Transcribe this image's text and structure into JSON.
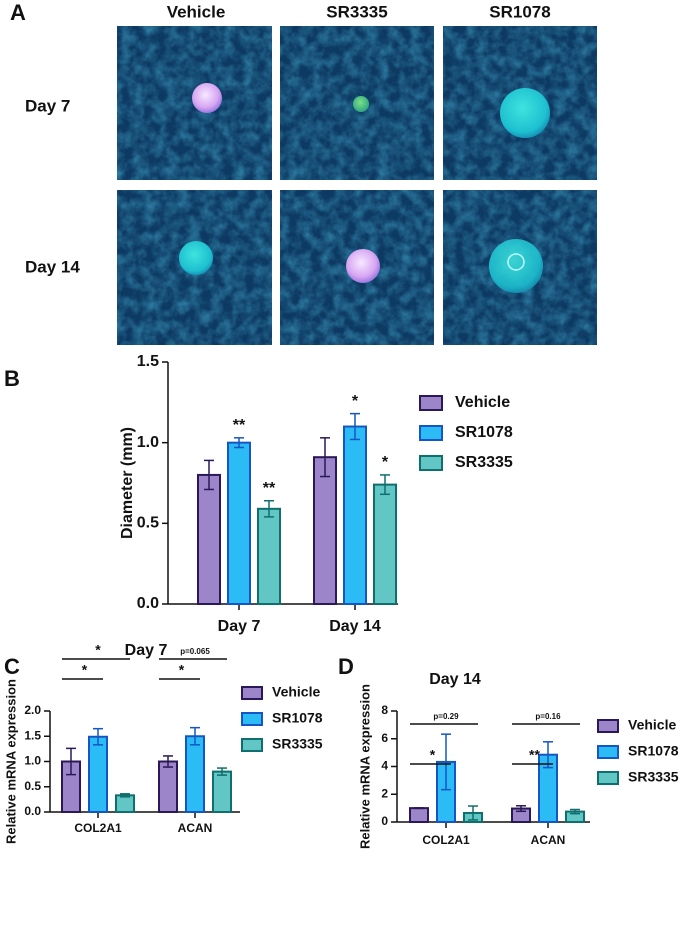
{
  "panel_a": {
    "label": "A",
    "columns": [
      "Vehicle",
      "SR3335",
      "SR1078"
    ],
    "rows": [
      "Day 7",
      "Day 14"
    ]
  },
  "chart_data": [
    {
      "type": "bar",
      "panel_label": "B",
      "ylabel": "Diameter (mm)",
      "categories": [
        "Day 7",
        "Day 14"
      ],
      "ylim": [
        0,
        1.5
      ],
      "yticks": [
        {
          "value": 0,
          "label": "0.0"
        },
        {
          "value": 0.5,
          "label": "0.5"
        },
        {
          "value": 1,
          "label": "1.0"
        },
        {
          "value": 1.5,
          "label": "1.5"
        }
      ],
      "series": [
        {
          "name": "Vehicle",
          "color": "#9d85c9",
          "edgecolor": "#2b1858",
          "values": [
            0.8,
            0.91
          ],
          "errors": [
            0.09,
            0.12
          ]
        },
        {
          "name": "SR1078",
          "color": "#2bbcf5",
          "edgecolor": "#1556c4",
          "values": [
            1.0,
            1.1
          ],
          "errors": [
            0.03,
            0.08
          ],
          "annotations": [
            "**",
            "*"
          ]
        },
        {
          "name": "SR3335",
          "color": "#62c6c4",
          "edgecolor": "#0f6e6e",
          "values": [
            0.59,
            0.74
          ],
          "errors": [
            0.05,
            0.06
          ],
          "annotations": [
            "**",
            "*"
          ]
        }
      ]
    },
    {
      "type": "bar",
      "panel_label": "C",
      "title": "Day 7",
      "ylabel": "Relative mRNA expression",
      "categories": [
        "COL2A1",
        "ACAN"
      ],
      "ylim": [
        0,
        2
      ],
      "yticks": [
        {
          "value": 0,
          "label": "0.0"
        },
        {
          "value": 0.5,
          "label": "0.5"
        },
        {
          "value": 1,
          "label": "1.0"
        },
        {
          "value": 1.5,
          "label": "1.5"
        },
        {
          "value": 2,
          "label": "2.0"
        }
      ],
      "series": [
        {
          "name": "Vehicle",
          "color": "#9d85c9",
          "edgecolor": "#2b1858",
          "values": [
            1.0,
            1.0
          ],
          "errors": [
            0.26,
            0.11
          ]
        },
        {
          "name": "SR1078",
          "color": "#2bbcf5",
          "edgecolor": "#1556c4",
          "values": [
            1.49,
            1.5
          ],
          "errors": [
            0.16,
            0.17
          ]
        },
        {
          "name": "SR3335",
          "color": "#62c6c4",
          "edgecolor": "#0f6e6e",
          "values": [
            0.33,
            0.8
          ],
          "errors": [
            0.03,
            0.07
          ]
        }
      ],
      "comparisons": [
        {
          "category": "COL2A1",
          "pair": [
            "Vehicle",
            "SR1078"
          ],
          "label": "*"
        },
        {
          "category": "COL2A1",
          "pair": [
            "Vehicle",
            "SR3335"
          ],
          "label": "*"
        },
        {
          "category": "ACAN",
          "pair": [
            "Vehicle",
            "SR1078"
          ],
          "label": "*"
        },
        {
          "category": "ACAN",
          "pair": [
            "Vehicle",
            "SR3335"
          ],
          "label": "p=0.065"
        }
      ]
    },
    {
      "type": "bar",
      "panel_label": "D",
      "title": "Day 14",
      "ylabel": "Relative mRNA expression",
      "categories": [
        "COL2A1",
        "ACAN"
      ],
      "ylim": [
        0,
        8
      ],
      "yticks": [
        0,
        2,
        4,
        6,
        8
      ],
      "series": [
        {
          "name": "Vehicle",
          "color": "#9d85c9",
          "edgecolor": "#2b1858",
          "values": [
            1.0,
            0.97
          ],
          "errors": [
            0.02,
            0.2
          ]
        },
        {
          "name": "SR1078",
          "color": "#2bbcf5",
          "edgecolor": "#1556c4",
          "values": [
            4.33,
            4.85
          ],
          "errors": [
            2.0,
            0.93
          ]
        },
        {
          "name": "SR3335",
          "color": "#62c6c4",
          "edgecolor": "#0f6e6e",
          "values": [
            0.65,
            0.75
          ],
          "errors": [
            0.5,
            0.15
          ]
        }
      ],
      "comparisons": [
        {
          "category": "COL2A1",
          "pair": [
            "Vehicle",
            "SR1078"
          ],
          "label": "*"
        },
        {
          "category": "COL2A1",
          "pair": [
            "Vehicle",
            "SR3335"
          ],
          "label": "p=0.29"
        },
        {
          "category": "ACAN",
          "pair": [
            "Vehicle",
            "SR1078"
          ],
          "label": "**"
        },
        {
          "category": "ACAN",
          "pair": [
            "Vehicle",
            "SR3335"
          ],
          "label": "p=0.16"
        }
      ]
    }
  ]
}
